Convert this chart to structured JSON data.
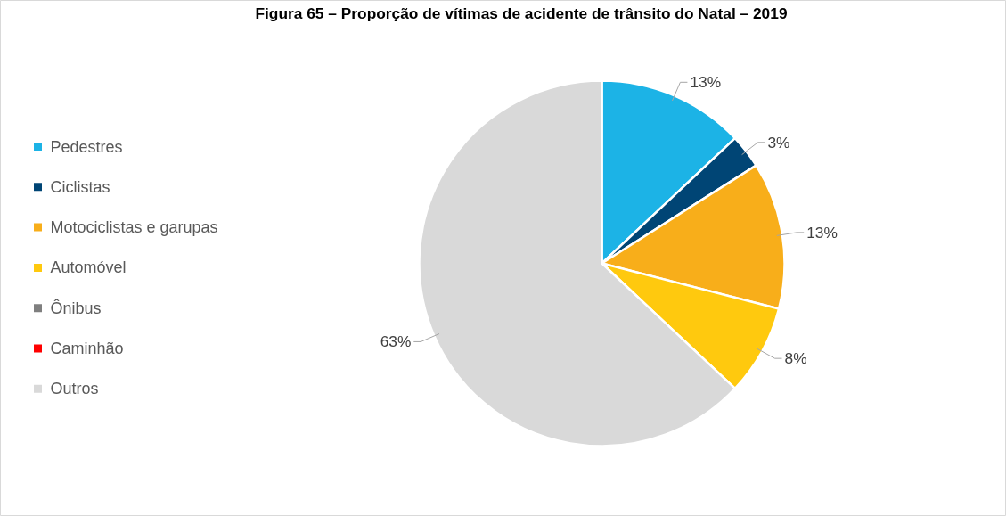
{
  "chart_data": {
    "type": "pie",
    "title": "Figura 65 – Proporção de vítimas de acidente de trânsito do Natal – 2019",
    "categories": [
      "Pedestres",
      "Ciclistas",
      "Motociclistas e garupas",
      "Automóvel",
      "Ônibus",
      "Caminhão",
      "Outros"
    ],
    "values": [
      13,
      3,
      13,
      8,
      0,
      0,
      63
    ],
    "colors": [
      "#1cb3e6",
      "#004575",
      "#f8ae1a",
      "#ffc90e",
      "#7f7f7f",
      "#ff0000",
      "#d9d9d9"
    ],
    "value_labels": [
      "13%",
      "3%",
      "13%",
      "8%",
      null,
      null,
      "63%"
    ],
    "legend": "left"
  }
}
